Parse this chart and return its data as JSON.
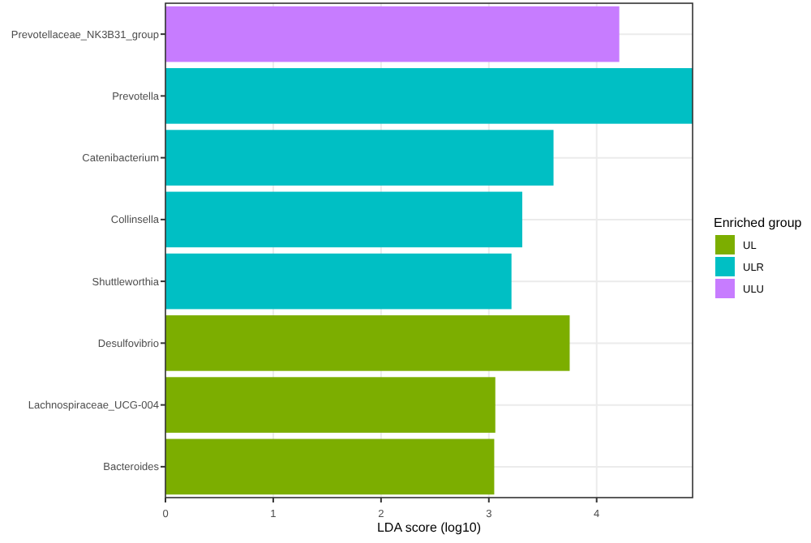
{
  "chart_data": {
    "type": "bar",
    "orientation": "horizontal",
    "stacked": true,
    "xlabel": "LDA score (log10)",
    "legend_title": "Enriched group",
    "legend": "right",
    "grid": true,
    "categories": [
      "Prevotellaceae_NK3B31_group",
      "Prevotella",
      "Catenibacterium",
      "Collinsella",
      "Shuttleworthia",
      "Desulfovibrio",
      "Lachnospiraceae_UCG-004",
      "Bacteroides"
    ],
    "series": [
      {
        "name": "UL",
        "color": "#7cae00",
        "values": [
          null,
          null,
          null,
          null,
          null,
          3.75,
          3.06,
          3.05
        ]
      },
      {
        "name": "ULR",
        "color": "#00bfc4",
        "values": [
          null,
          4.89,
          3.6,
          3.31,
          3.21,
          null,
          null,
          null
        ]
      },
      {
        "name": "ULU",
        "color": "#c77cff",
        "values": [
          4.21,
          null,
          null,
          null,
          null,
          null,
          null,
          null
        ]
      }
    ],
    "xlim": [
      0,
      4.89
    ],
    "xticks": [
      0,
      1,
      2,
      3,
      4
    ]
  }
}
